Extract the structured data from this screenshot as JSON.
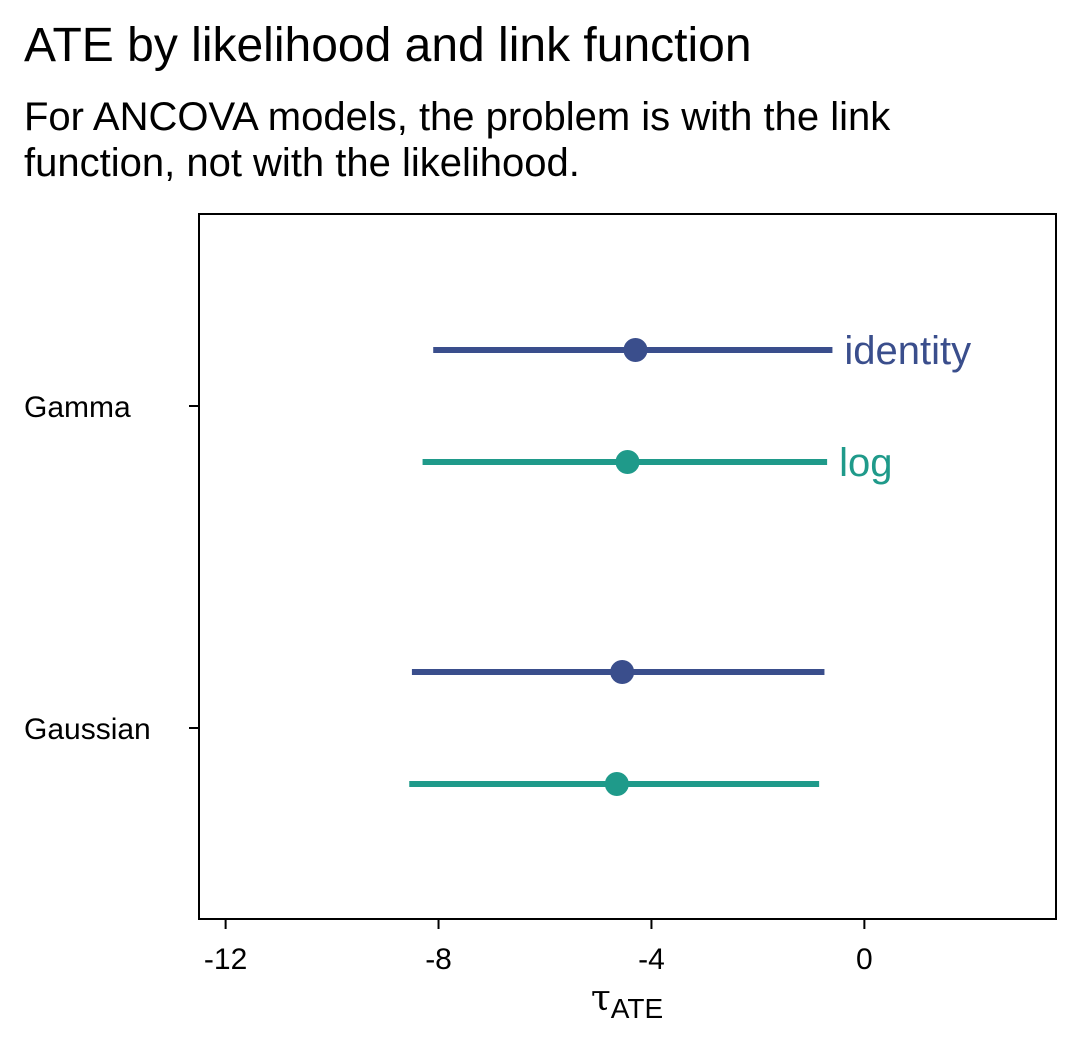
{
  "chart_data": {
    "type": "scatter",
    "title": "ATE by likelihood and link function",
    "subtitle": "For ANCOVA models, the problem is with the link function, not with the likelihood.",
    "xlabel_main": "τ",
    "xlabel_sub": "ATE",
    "ylabel": "",
    "xlim": [
      -12.5,
      3.6
    ],
    "x_ticks": [
      {
        "value": -12,
        "label": "-12"
      },
      {
        "value": -8,
        "label": "-8"
      },
      {
        "value": -4,
        "label": "-4"
      },
      {
        "value": 0,
        "label": "0"
      }
    ],
    "categories": [
      "Gamma",
      "Gaussian"
    ],
    "grid": false,
    "legend": "direct labels at right end of Gamma intervals",
    "series": [
      {
        "name": "identity",
        "color": "#3a4e8c",
        "points": [
          {
            "category": "Gamma",
            "estimate": -4.3,
            "lower": -8.1,
            "upper": -0.6
          },
          {
            "category": "Gaussian",
            "estimate": -4.55,
            "lower": -8.5,
            "upper": -0.75
          }
        ]
      },
      {
        "name": "log",
        "color": "#1f9a8a",
        "points": [
          {
            "category": "Gamma",
            "estimate": -4.45,
            "lower": -8.3,
            "upper": -0.7
          },
          {
            "category": "Gaussian",
            "estimate": -4.65,
            "lower": -8.55,
            "upper": -0.85
          }
        ]
      }
    ]
  }
}
